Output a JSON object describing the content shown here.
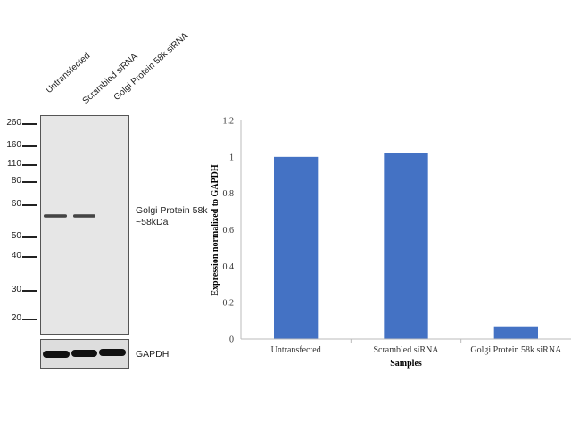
{
  "blot": {
    "lanes": [
      "Untransfected",
      "Scrambled siRNA",
      "Golgi Protein 58k siRNA"
    ],
    "markers": [
      "260",
      "160",
      "110",
      "80",
      "60",
      "50",
      "40",
      "30",
      "20"
    ],
    "band_label": "Golgi Protein 58k",
    "band_size": "~58kDa",
    "loading_control": "GAPDH"
  },
  "chart_data": {
    "type": "bar",
    "title": "",
    "categories": [
      "Untransfected",
      "Scrambled siRNA",
      "Golgi Protein 58k siRNA"
    ],
    "values": [
      1.0,
      1.02,
      0.07
    ],
    "xlabel": "Samples",
    "ylabel": "Expression normalized to GAPDH",
    "ylim": [
      0,
      1.2
    ],
    "yticks": [
      "0",
      "0.2",
      "0.4",
      "0.6",
      "0.8",
      "1",
      "1.2"
    ],
    "grid": false,
    "bar_color": "#4472C4"
  }
}
